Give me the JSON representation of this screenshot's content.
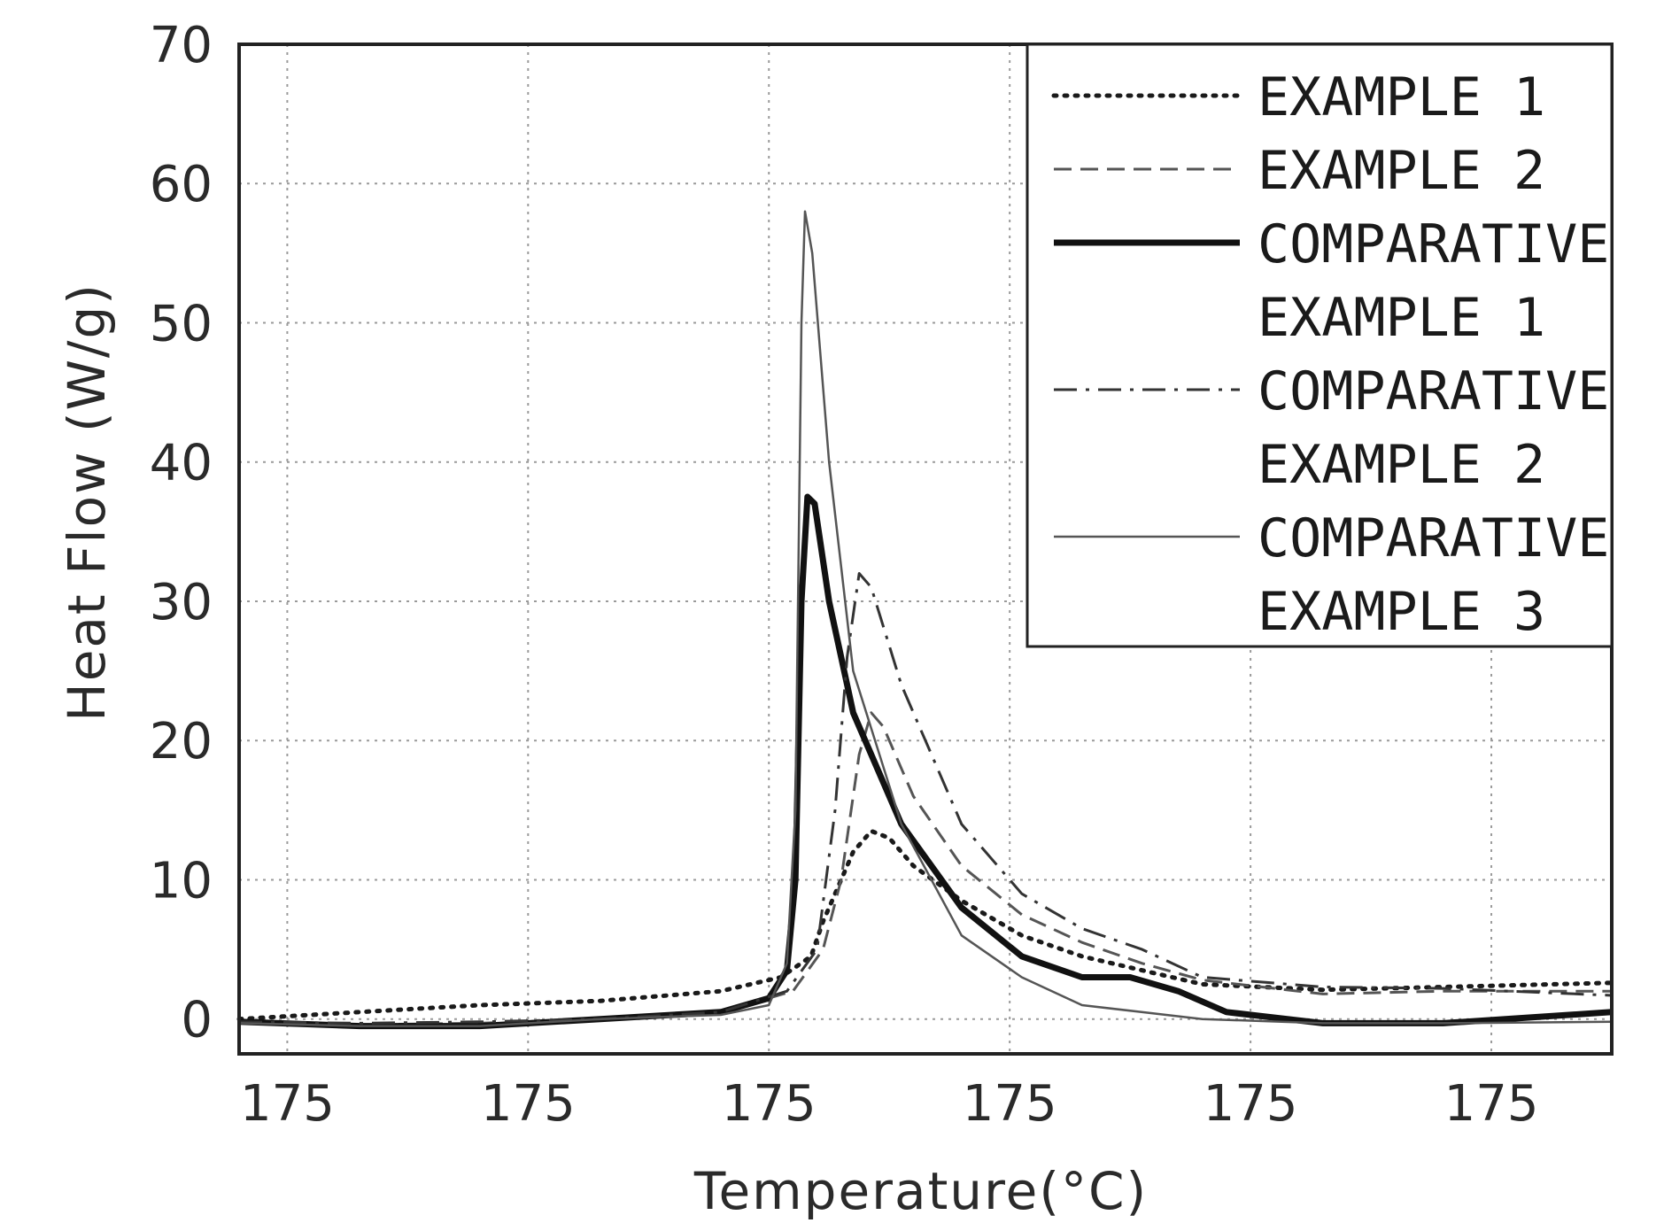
{
  "chart_data": {
    "type": "line",
    "title": "",
    "xlabel": "Temperature(°C)",
    "ylabel": "Heat Flow (W/g)",
    "xlim": [
      0,
      11.4
    ],
    "ylim": [
      -2.5,
      70
    ],
    "x_ticks": [
      0.4,
      2.4,
      4.4,
      6.4,
      8.4,
      10.4
    ],
    "x_tick_labels": [
      "175",
      "175",
      "175",
      "175",
      "175",
      "175"
    ],
    "y_ticks": [
      0,
      10,
      20,
      30,
      40,
      50,
      60,
      70
    ],
    "y_tick_labels": [
      "0",
      "10",
      "20",
      "30",
      "40",
      "50",
      "60",
      "70"
    ],
    "grid": true,
    "legend_position": "top-right",
    "series": [
      {
        "name": "EXAMPLE 1",
        "legend_lines": [
          "EXAMPLE 1"
        ],
        "style": "dotted",
        "points": [
          [
            0,
            0
          ],
          [
            1,
            0.5
          ],
          [
            2,
            1
          ],
          [
            3,
            1.3
          ],
          [
            4,
            2
          ],
          [
            4.5,
            3
          ],
          [
            4.75,
            4.5
          ],
          [
            4.85,
            7
          ],
          [
            4.95,
            9
          ],
          [
            5.1,
            12
          ],
          [
            5.25,
            13.5
          ],
          [
            5.4,
            13
          ],
          [
            5.6,
            11
          ],
          [
            6,
            8.5
          ],
          [
            6.5,
            6
          ],
          [
            7,
            4.5
          ],
          [
            7.5,
            3.5
          ],
          [
            8,
            2.5
          ],
          [
            9,
            2.1
          ],
          [
            10,
            2.3
          ],
          [
            11.4,
            2.6
          ]
        ]
      },
      {
        "name": "EXAMPLE 2",
        "legend_lines": [
          "EXAMPLE 2"
        ],
        "style": "dashed",
        "points": [
          [
            0,
            -0.2
          ],
          [
            1,
            -0.4
          ],
          [
            2,
            -0.3
          ],
          [
            3,
            0
          ],
          [
            4,
            0.5
          ],
          [
            4.6,
            2
          ],
          [
            4.85,
            5
          ],
          [
            5,
            10
          ],
          [
            5.15,
            19
          ],
          [
            5.25,
            22
          ],
          [
            5.35,
            21
          ],
          [
            5.6,
            16
          ],
          [
            6,
            11
          ],
          [
            6.5,
            7.5
          ],
          [
            7,
            5.5
          ],
          [
            7.5,
            4
          ],
          [
            8,
            2.8
          ],
          [
            9,
            1.8
          ],
          [
            10,
            2
          ],
          [
            11.4,
            2
          ]
        ]
      },
      {
        "name": "COMPARATIVE EXAMPLE 1",
        "legend_lines": [
          "COMPARATIVE",
          "EXAMPLE 1"
        ],
        "style": "solid-bold",
        "points": [
          [
            0,
            -0.2
          ],
          [
            1,
            -0.5
          ],
          [
            2,
            -0.5
          ],
          [
            3,
            0
          ],
          [
            4,
            0.5
          ],
          [
            4.4,
            1.5
          ],
          [
            4.55,
            3.5
          ],
          [
            4.62,
            10
          ],
          [
            4.67,
            30
          ],
          [
            4.72,
            37.5
          ],
          [
            4.78,
            37
          ],
          [
            4.9,
            30
          ],
          [
            5.1,
            22
          ],
          [
            5.5,
            14
          ],
          [
            6,
            8
          ],
          [
            6.5,
            4.5
          ],
          [
            7,
            3
          ],
          [
            7.4,
            3
          ],
          [
            7.8,
            2
          ],
          [
            8.2,
            0.5
          ],
          [
            9,
            -0.3
          ],
          [
            10,
            -0.3
          ],
          [
            11.4,
            0.5
          ]
        ]
      },
      {
        "name": "COMPARATIVE EXAMPLE 2",
        "legend_lines": [
          "COMPARATIVE",
          "EXAMPLE 2"
        ],
        "style": "dash-dot",
        "points": [
          [
            0,
            -0.2
          ],
          [
            1,
            -0.3
          ],
          [
            2,
            -0.2
          ],
          [
            3,
            0
          ],
          [
            4,
            0.5
          ],
          [
            4.55,
            2
          ],
          [
            4.8,
            5
          ],
          [
            4.95,
            15
          ],
          [
            5.05,
            26
          ],
          [
            5.15,
            32
          ],
          [
            5.25,
            31
          ],
          [
            5.5,
            24
          ],
          [
            6,
            14
          ],
          [
            6.5,
            9
          ],
          [
            7,
            6.5
          ],
          [
            7.5,
            5
          ],
          [
            8,
            3
          ],
          [
            9,
            2.3
          ],
          [
            10,
            2.2
          ],
          [
            11.4,
            1.7
          ]
        ]
      },
      {
        "name": "COMPARATIVE EXAMPLE 3",
        "legend_lines": [
          "COMPARATIVE",
          "EXAMPLE 3"
        ],
        "style": "solid-thin",
        "points": [
          [
            0,
            -0.3
          ],
          [
            1,
            -0.5
          ],
          [
            2,
            -0.5
          ],
          [
            3,
            0
          ],
          [
            4,
            0.3
          ],
          [
            4.4,
            1
          ],
          [
            4.55,
            4
          ],
          [
            4.62,
            15
          ],
          [
            4.67,
            50
          ],
          [
            4.7,
            58
          ],
          [
            4.76,
            55
          ],
          [
            4.9,
            40
          ],
          [
            5.1,
            25
          ],
          [
            5.5,
            14
          ],
          [
            6,
            6
          ],
          [
            6.5,
            3
          ],
          [
            7,
            1
          ],
          [
            8,
            0
          ],
          [
            9,
            -0.3
          ],
          [
            10,
            -0.3
          ],
          [
            11.4,
            -0.2
          ]
        ]
      }
    ]
  }
}
